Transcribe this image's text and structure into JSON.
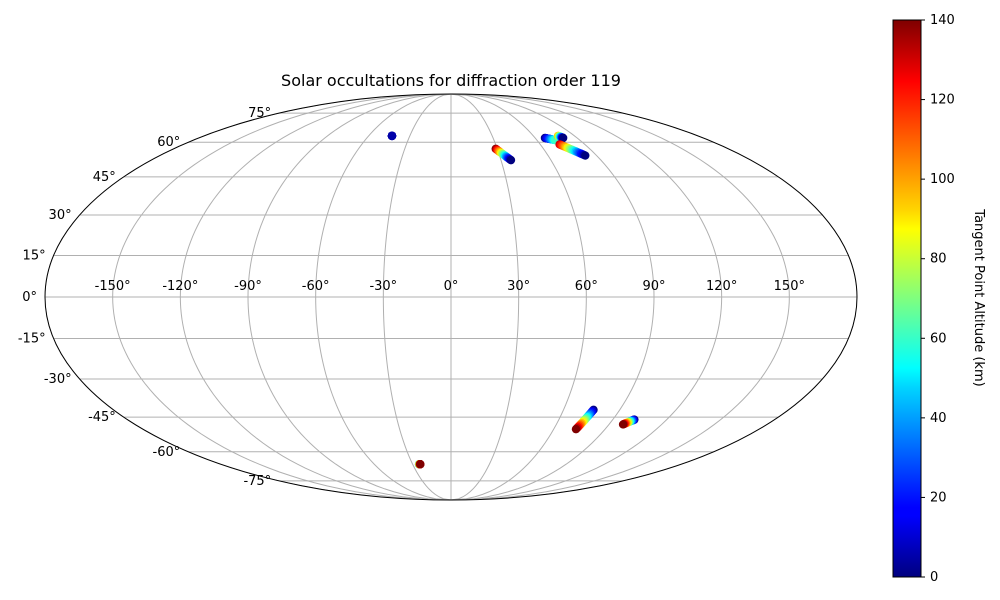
{
  "chart_data": {
    "type": "scatter",
    "projection": "mollweide",
    "title": "Solar occultations for diffraction order 119",
    "colorbar": {
      "label": "Tangent Point Altitude (km)",
      "colormap": "jet",
      "range": [
        0,
        140
      ],
      "ticks": [
        0,
        20,
        40,
        60,
        80,
        100,
        120,
        140
      ]
    },
    "lon_ticks": [
      -150,
      -120,
      -90,
      -60,
      -30,
      0,
      30,
      60,
      90,
      120,
      150
    ],
    "lat_ticks": [
      -75,
      -60,
      -45,
      -30,
      -15,
      0,
      15,
      30,
      45,
      60,
      75
    ],
    "grid": true,
    "tracks": [
      {
        "lon_start": -43,
        "lat_start": 63,
        "alt_start": 5,
        "lon_end": -43,
        "lat_end": 63,
        "alt_end": 5
      },
      {
        "lon_start": 29,
        "lat_start": 57,
        "alt_start": 140,
        "lon_end": 36,
        "lat_end": 52,
        "alt_end": 0
      },
      {
        "lon_start": 67,
        "lat_start": 62,
        "alt_start": 0,
        "lon_end": 73,
        "lat_end": 61,
        "alt_end": 60
      },
      {
        "lon_start": 78,
        "lat_start": 63,
        "alt_start": 100,
        "lon_end": 80,
        "lat_end": 62,
        "alt_end": 0
      },
      {
        "lon_start": 73,
        "lat_start": 59,
        "alt_start": 130,
        "lon_end": 83,
        "lat_end": 54,
        "alt_end": 0
      },
      {
        "lon_start": 76,
        "lat_start": -42,
        "alt_start": 0,
        "lon_end": 73,
        "lat_end": -50,
        "alt_end": 140
      },
      {
        "lon_start": 102,
        "lat_start": -46,
        "alt_start": 0,
        "lon_end": 98,
        "lat_end": -48,
        "alt_end": 140
      },
      {
        "lon_start": -25,
        "lat_start": -66,
        "alt_start": 50,
        "lon_end": -24,
        "lat_end": -66,
        "alt_end": 140
      }
    ]
  }
}
